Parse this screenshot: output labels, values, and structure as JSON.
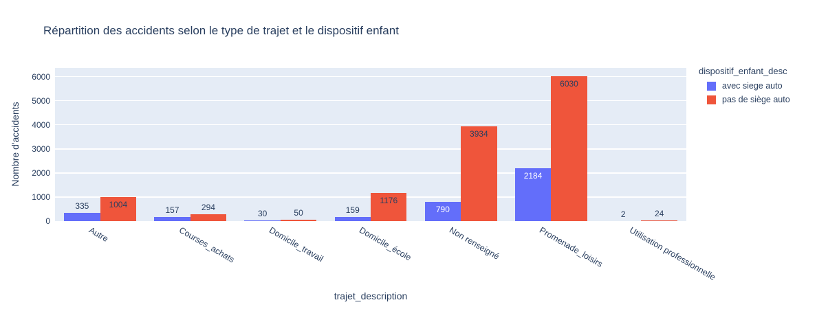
{
  "chart_data": {
    "type": "bar",
    "title": "Répartition des accidents selon le type de trajet et le dispositif enfant",
    "xlabel": "trajet_description",
    "ylabel": "Nombre d'accidents",
    "legend_title": "dispositif_enfant_desc",
    "legend_position": "right",
    "grid": true,
    "categories": [
      "Autre",
      "Courses_achats",
      "Domicile_travail",
      "Domicile_école",
      "Non renseigné",
      "Promenade_loisirs",
      "Utilisation professionnelle"
    ],
    "series": [
      {
        "name": "avec siege auto",
        "color": "#636EFA",
        "label_color_inside": "#ffffff",
        "values": [
          335,
          157,
          30,
          159,
          790,
          2184,
          2
        ]
      },
      {
        "name": "pas de siège auto",
        "color": "#EF553B",
        "label_color_inside": "#2a3f5f",
        "values": [
          1004,
          294,
          50,
          1176,
          3934,
          6030,
          24
        ]
      }
    ],
    "yticks": [
      0,
      1000,
      2000,
      3000,
      4000,
      5000,
      6000
    ],
    "ylim": [
      0,
      6360
    ],
    "colors": {
      "page_bg": "#FFFFFF",
      "plot_bg": "#E5ECF6",
      "grid": "#FFFFFF",
      "text": "#2a3f5f"
    }
  }
}
